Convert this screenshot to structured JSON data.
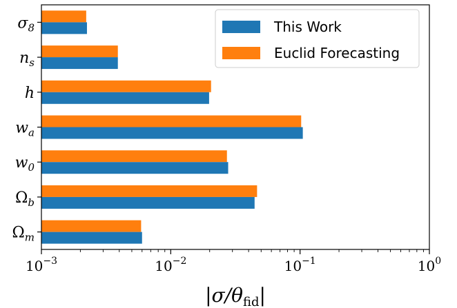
{
  "chart_data": {
    "type": "bar",
    "orientation": "horizontal",
    "categories": [
      "σ8",
      "ns",
      "h",
      "wa",
      "w0",
      "Ωb",
      "Ωm"
    ],
    "category_labels": [
      {
        "base": "σ",
        "sub": "8"
      },
      {
        "base": "n",
        "sub": "s"
      },
      {
        "base": "h",
        "sub": ""
      },
      {
        "base": "w",
        "sub": "a"
      },
      {
        "base": "w",
        "sub": "0"
      },
      {
        "base": "Ω",
        "sub": "b"
      },
      {
        "base": "Ω",
        "sub": "m"
      }
    ],
    "series": [
      {
        "name": "This Work",
        "color": "#1f77b4",
        "values": [
          0.00225,
          0.0039,
          0.0198,
          0.105,
          0.0278,
          0.0445,
          0.006
        ]
      },
      {
        "name": "Euclid Forecasting",
        "color": "#ff7f0e",
        "values": [
          0.00222,
          0.0039,
          0.0205,
          0.102,
          0.0272,
          0.0465,
          0.0059
        ]
      }
    ],
    "xscale": "log",
    "xlim": [
      0.001,
      1
    ],
    "xticks": [
      {
        "base": "10",
        "exp": "−3"
      },
      {
        "base": "10",
        "exp": "−2"
      },
      {
        "base": "10",
        "exp": "−1"
      },
      {
        "base": "10",
        "exp": "0"
      }
    ],
    "xlabel": "|σ/θfid|",
    "ylabel": "",
    "title": "",
    "grid": false,
    "legend_position": "top-right"
  }
}
